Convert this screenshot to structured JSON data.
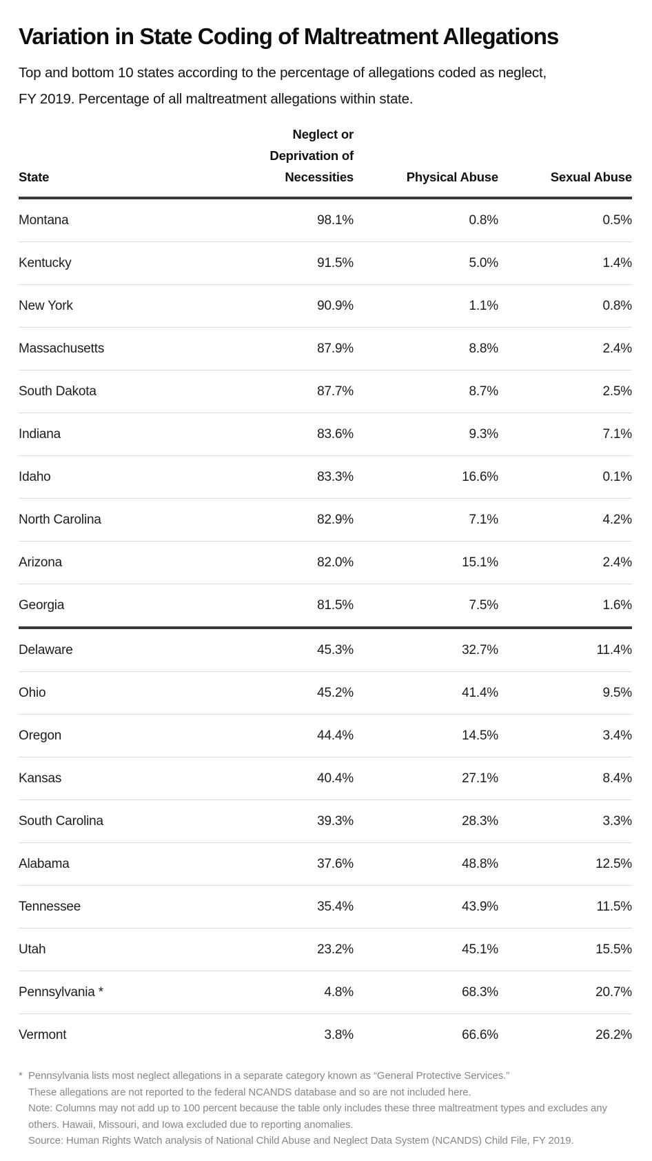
{
  "title": "Variation in State Coding of Maltreatment Allegations",
  "subtitle": "Top and bottom 10 states according to the percentage of allegations coded as neglect, FY 2019. Percentage of all maltreatment allegations within state.",
  "chart_data": {
    "type": "table",
    "columns": [
      "State",
      "Neglect or Deprivation of Necessities",
      "Physical Abuse",
      "Sexual Abuse"
    ],
    "value_unit": "percent of all maltreatment allegations within state",
    "groups": [
      {
        "name": "top_10_states_by_neglect_share",
        "rows": [
          [
            "Montana",
            "98.1%",
            "0.8%",
            "0.5%"
          ],
          [
            "Kentucky",
            "91.5%",
            "5.0%",
            "1.4%"
          ],
          [
            "New York",
            "90.9%",
            "1.1%",
            "0.8%"
          ],
          [
            "Massachusetts",
            "87.9%",
            "8.8%",
            "2.4%"
          ],
          [
            "South Dakota",
            "87.7%",
            "8.7%",
            "2.5%"
          ],
          [
            "Indiana",
            "83.6%",
            "9.3%",
            "7.1%"
          ],
          [
            "Idaho",
            "83.3%",
            "16.6%",
            "0.1%"
          ],
          [
            "North Carolina",
            "82.9%",
            "7.1%",
            "4.2%"
          ],
          [
            "Arizona",
            "82.0%",
            "15.1%",
            "2.4%"
          ],
          [
            "Georgia",
            "81.5%",
            "7.5%",
            "1.6%"
          ]
        ]
      },
      {
        "name": "bottom_10_states_by_neglect_share",
        "rows": [
          [
            "Delaware",
            "45.3%",
            "32.7%",
            "11.4%"
          ],
          [
            "Ohio",
            "45.2%",
            "41.4%",
            "9.5%"
          ],
          [
            "Oregon",
            "44.4%",
            "14.5%",
            "3.4%"
          ],
          [
            "Kansas",
            "40.4%",
            "27.1%",
            "8.4%"
          ],
          [
            "South Carolina",
            "39.3%",
            "28.3%",
            "3.3%"
          ],
          [
            "Alabama",
            "37.6%",
            "48.8%",
            "12.5%"
          ],
          [
            "Tennessee",
            "35.4%",
            "43.9%",
            "11.5%"
          ],
          [
            "Utah",
            "23.2%",
            "45.1%",
            "15.5%"
          ],
          [
            "Pennsylvania *",
            "4.8%",
            "68.3%",
            "20.7%"
          ],
          [
            "Vermont",
            "3.8%",
            "66.6%",
            "26.2%"
          ]
        ]
      }
    ]
  },
  "footnotes": [
    {
      "marker": "*",
      "text": "Pennsylvania lists most neglect allegations in a separate category known as “General Protective Services.”"
    },
    {
      "marker": "",
      "text": "These allegations are not reported to the federal NCANDS database and so are not included here."
    },
    {
      "marker": "",
      "text": "Note: Columns may not add up to 100 percent because the table only includes these three maltreatment types and excludes any others. Hawaii, Missouri, and Iowa excluded due to reporting anomalies."
    },
    {
      "marker": "",
      "text": "Source: Human Rights Watch analysis of National Child Abuse and Neglect Data System (NCANDS) Child File, FY 2019."
    }
  ],
  "colors": {
    "text": "#1c1c1c",
    "rule_heavy": "#3a3a3a",
    "rule_light": "#dcdcdc",
    "footnote_gray": "#878787",
    "background": "#ffffff"
  }
}
